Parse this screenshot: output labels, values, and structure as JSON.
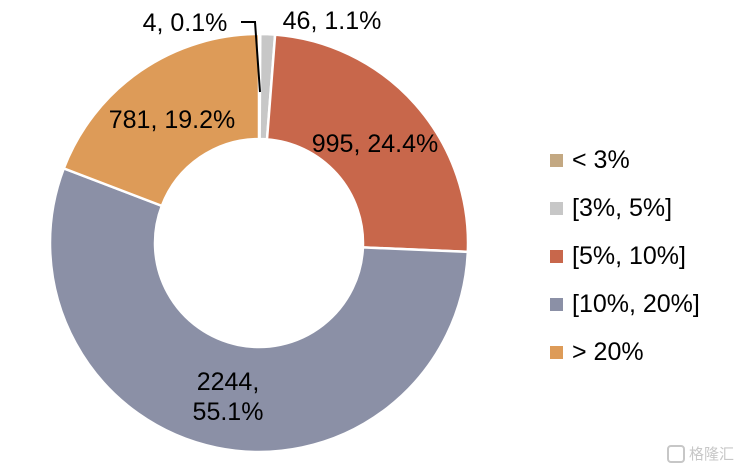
{
  "chart_data": {
    "type": "pie",
    "subtype": "donut",
    "slices": [
      {
        "label": "< 3%",
        "value": 4,
        "percent": 0.1,
        "color": "#c3a882",
        "data_label": "4, 0.1%"
      },
      {
        "label": "[3%, 5%]",
        "value": 46,
        "percent": 1.1,
        "color": "#c7c7c7",
        "data_label": "46, 1.1%"
      },
      {
        "label": "[5%, 10%]",
        "value": 995,
        "percent": 24.4,
        "color": "#c8674b",
        "data_label": "995, 24.4%"
      },
      {
        "label": "[10%, 20%]",
        "value": 2244,
        "percent": 55.1,
        "color": "#8b90a6",
        "data_label_lines": [
          "2244,",
          "55.1%"
        ]
      },
      {
        "label": "> 20%",
        "value": 781,
        "percent": 19.2,
        "color": "#dd9b58",
        "data_label": "781, 19.2%"
      }
    ],
    "legend_position": "right"
  },
  "watermark": {
    "text": "格隆汇"
  }
}
